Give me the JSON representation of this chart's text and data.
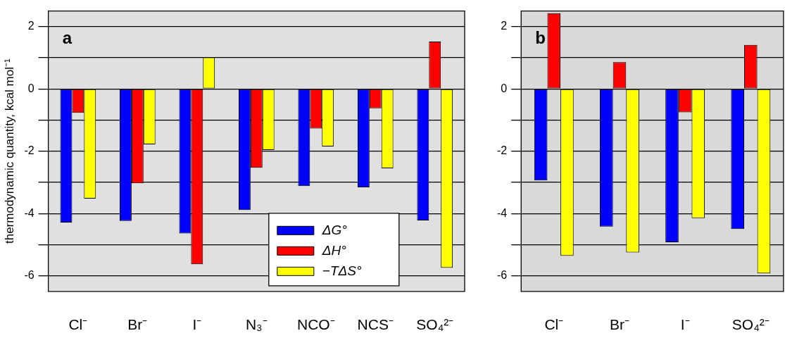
{
  "chart_data": [
    {
      "type": "bar",
      "categories": [
        "Cl⁻",
        "Br⁻",
        "I⁻",
        "N₃⁻",
        "NCO⁻",
        "NCS⁻",
        "SO₄²⁻"
      ],
      "ylabel": "thermodynamic quantity, kcal mol⁻¹",
      "annotations": [
        "a"
      ],
      "ylim": [
        -6.5,
        2.5
      ],
      "yticks": [
        -6,
        {
          "value": -5,
          "label": null
        },
        -4,
        {
          "value": -3,
          "label": null
        },
        -2,
        {
          "value": -1,
          "label": null
        },
        0,
        {
          "value": 1,
          "label": null
        },
        2
      ],
      "grid": "y",
      "legend": "bottom",
      "series": [
        {
          "name": "ΔG°",
          "color": "#0000ff",
          "values": [
            -4.29,
            -4.24,
            -4.64,
            -3.89,
            -3.12,
            -3.16,
            -4.22
          ]
        },
        {
          "name": "ΔH°",
          "color": "#ff0000",
          "values": [
            -0.77,
            -3.03,
            -5.63,
            -2.53,
            -1.27,
            -0.62,
            1.52
          ]
        },
        {
          "name": "−TΔS°",
          "color": "#ffff00",
          "values": [
            -3.52,
            -1.78,
            1.01,
            -1.96,
            -1.85,
            -2.55,
            -5.74
          ]
        }
      ]
    },
    {
      "type": "bar",
      "categories": [
        "Cl⁻",
        "Br⁻",
        "I⁻",
        "SO₄²⁻"
      ],
      "annotations": [
        "b"
      ],
      "ylim": [
        -6.5,
        2.5
      ],
      "yticks": [
        -6,
        {
          "value": -5,
          "label": null
        },
        -4,
        {
          "value": -3,
          "label": null
        },
        -2,
        {
          "value": -1,
          "label": null
        },
        0,
        {
          "value": 1,
          "label": null
        },
        2
      ],
      "grid": "y",
      "series": [
        {
          "color": "#0000ff",
          "values": [
            -2.94,
            -4.42,
            -4.92,
            -4.5
          ]
        },
        {
          "color": "#ff0000",
          "values": [
            2.43,
            0.86,
            -0.75,
            1.41
          ]
        },
        {
          "color": "#ffff00",
          "values": [
            -5.36,
            -5.25,
            -4.15,
            -5.92
          ]
        }
      ]
    }
  ]
}
